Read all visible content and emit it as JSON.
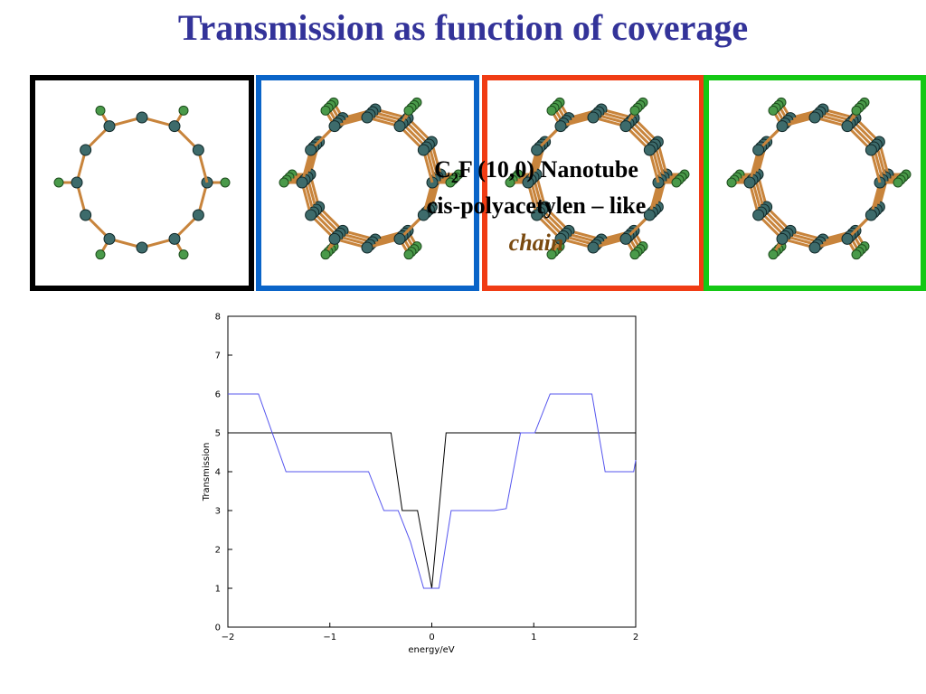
{
  "title": "Transmission as function of coverage",
  "overlay": {
    "line1": [
      "C",
      "2",
      "F (10,0) Nanotube"
    ],
    "line2": "cis-polyacetylen – like",
    "line3": "chain"
  },
  "chart_data": {
    "type": "line",
    "xlabel": "energy/eV",
    "ylabel": "Transmission",
    "xlim": [
      -2,
      2
    ],
    "ylim": [
      0,
      8
    ],
    "xticks": [
      {
        "value": -2,
        "label": "−2"
      },
      {
        "value": -1,
        "label": "−1"
      },
      0,
      1,
      2
    ],
    "yticks": [
      0,
      1,
      2,
      3,
      4,
      5,
      6,
      7,
      8
    ],
    "series": [
      {
        "color": "#000000",
        "x": [
          -2,
          -0.4,
          -0.29,
          -0.14,
          0.0,
          0.14,
          2
        ],
        "values": [
          5,
          5,
          3,
          3,
          1,
          5,
          5
        ]
      },
      {
        "color": "#5555ee",
        "x": [
          -2,
          -1.7,
          -1.43,
          -0.62,
          -0.47,
          -0.33,
          -0.21,
          -0.08,
          0.07,
          0.19,
          0.61,
          0.73,
          0.87,
          1.01,
          1.16,
          1.57,
          1.7,
          1.98,
          2.0
        ],
        "values": [
          6,
          6,
          4,
          4,
          3,
          3,
          2.2,
          1,
          1,
          3,
          3,
          3.05,
          5,
          5,
          6,
          6,
          4,
          4,
          4.3
        ]
      }
    ]
  }
}
